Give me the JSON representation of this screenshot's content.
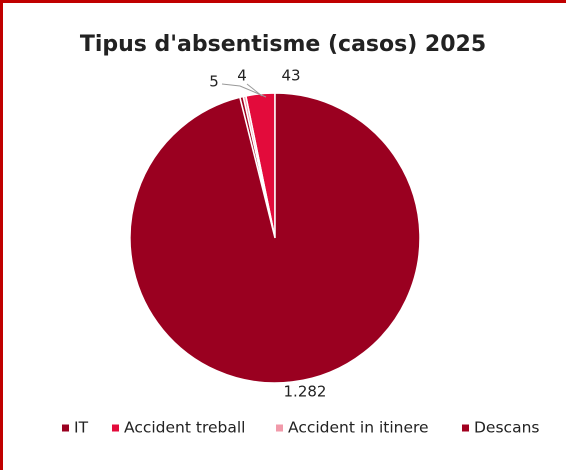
{
  "chart_data": {
    "type": "pie",
    "title": "Tipus d'absentisme (casos) 2025",
    "categories": [
      "IT",
      "Accident treball",
      "Accident in itinere",
      "Descans"
    ],
    "values": [
      1282,
      43,
      4,
      5
    ],
    "value_labels": [
      "1.282",
      "43",
      "4",
      "5"
    ],
    "colors": [
      "#9a0020",
      "#e30b3b",
      "#f19aaa",
      "#a1001f"
    ],
    "legend": "bottom"
  }
}
